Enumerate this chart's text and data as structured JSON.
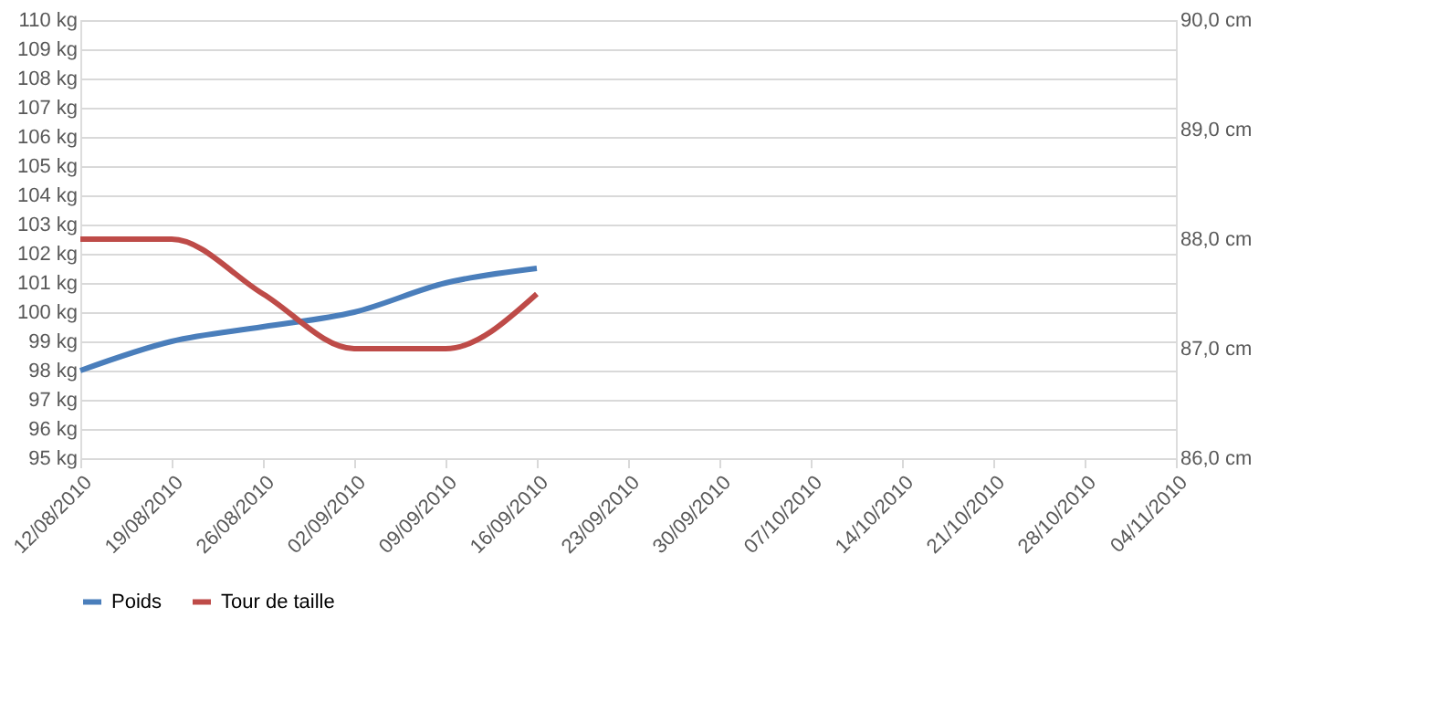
{
  "chart_data": {
    "type": "line",
    "x": [
      "2010-08-12",
      "2010-08-19",
      "2010-08-26",
      "2010-09-02",
      "2010-09-09",
      "2010-09-16"
    ],
    "series": [
      {
        "name": "Poids",
        "color": "#4a7ebb",
        "values": [
          98,
          99,
          99.5,
          100,
          101,
          101.5
        ]
      },
      {
        "name": "Tour de taille",
        "color": "#be4b48",
        "axis": "y2",
        "values": [
          88,
          88,
          87.5,
          87,
          87,
          87.5
        ]
      }
    ],
    "xlim": [
      "2010-08-12",
      "2010-11-04"
    ],
    "xticks": [
      {
        "value": "2010-08-12",
        "label": "12/08/2010"
      },
      {
        "value": "2010-08-19",
        "label": "19/08/2010"
      },
      {
        "value": "2010-08-26",
        "label": "26/08/2010"
      },
      {
        "value": "2010-09-02",
        "label": "02/09/2010"
      },
      {
        "value": "2010-09-09",
        "label": "09/09/2010"
      },
      {
        "value": "2010-09-16",
        "label": "16/09/2010"
      },
      {
        "value": "2010-09-23",
        "label": "23/09/2010"
      },
      {
        "value": "2010-09-30",
        "label": "30/09/2010"
      },
      {
        "value": "2010-10-07",
        "label": "07/10/2010"
      },
      {
        "value": "2010-10-14",
        "label": "14/10/2010"
      },
      {
        "value": "2010-10-21",
        "label": "21/10/2010"
      },
      {
        "value": "2010-10-28",
        "label": "28/10/2010"
      },
      {
        "value": "2010-11-04",
        "label": "04/11/2010"
      }
    ],
    "ylim": [
      95,
      110
    ],
    "yticks": [
      {
        "value": 95,
        "label": "95 kg"
      },
      {
        "value": 96,
        "label": "96 kg"
      },
      {
        "value": 97,
        "label": "97 kg"
      },
      {
        "value": 98,
        "label": "98 kg"
      },
      {
        "value": 99,
        "label": "99 kg"
      },
      {
        "value": 100,
        "label": "100 kg"
      },
      {
        "value": 101,
        "label": "101 kg"
      },
      {
        "value": 102,
        "label": "102 kg"
      },
      {
        "value": 103,
        "label": "103 kg"
      },
      {
        "value": 104,
        "label": "104 kg"
      },
      {
        "value": 105,
        "label": "105 kg"
      },
      {
        "value": 106,
        "label": "106 kg"
      },
      {
        "value": 107,
        "label": "107 kg"
      },
      {
        "value": 108,
        "label": "108 kg"
      },
      {
        "value": 109,
        "label": "109 kg"
      },
      {
        "value": 110,
        "label": "110 kg"
      }
    ],
    "y2lim": [
      86,
      90
    ],
    "y2ticks": [
      {
        "value": 86,
        "label": "86,0 cm"
      },
      {
        "value": 87,
        "label": "87,0 cm"
      },
      {
        "value": 88,
        "label": "88,0 cm"
      },
      {
        "value": 89,
        "label": "89,0 cm"
      },
      {
        "value": 90,
        "label": "90,0 cm"
      }
    ],
    "grid": "y",
    "legend": "bottom",
    "marker": "none",
    "line_style": "solid"
  }
}
